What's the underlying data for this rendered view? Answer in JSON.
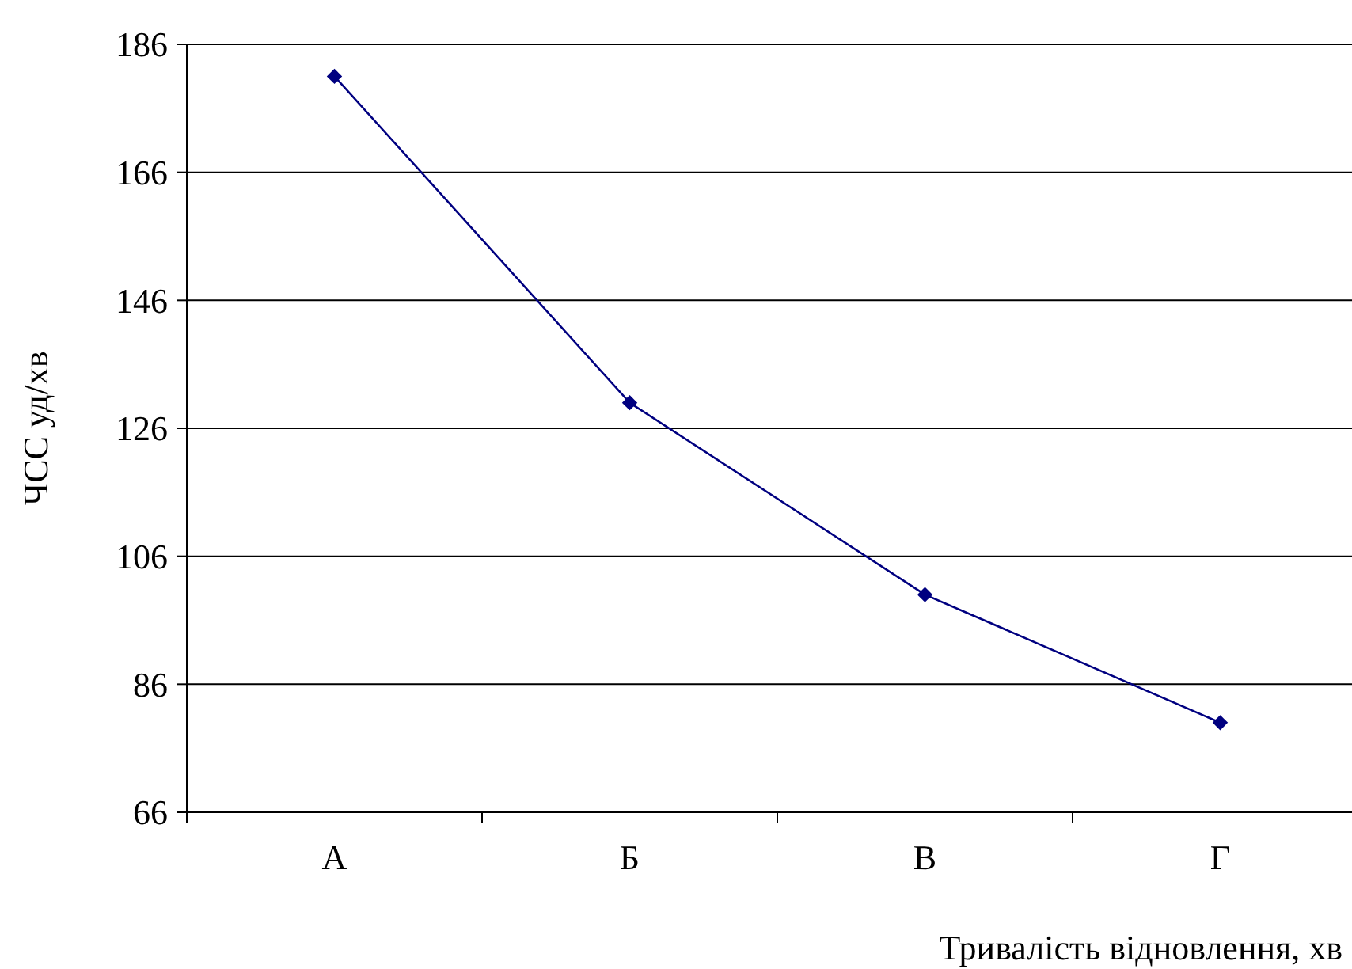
{
  "chart_data": {
    "type": "line",
    "xlabel": "Тривалість відновлення, хв",
    "ylabel": "ЧСС уд/хв",
    "categories": [
      "А",
      "Б",
      "В",
      "Г"
    ],
    "series": [
      {
        "color": "#000080",
        "values": [
          181,
          130,
          100,
          80
        ]
      }
    ],
    "ylim": [
      66,
      186
    ],
    "yticks": [
      66,
      86,
      106,
      126,
      146,
      166,
      186
    ],
    "grid": "y",
    "marker": "diamond",
    "line_style": "solid"
  }
}
